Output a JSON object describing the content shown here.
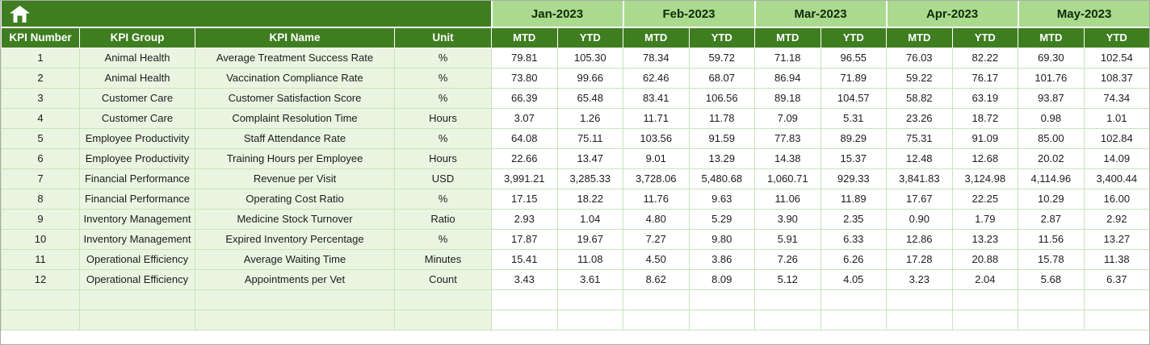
{
  "sheet": {
    "home_icon": "home-icon",
    "months": [
      "Jan-2023",
      "Feb-2023",
      "Mar-2023",
      "Apr-2023",
      "May-2023"
    ],
    "period_headers": [
      "MTD",
      "YTD"
    ],
    "left_headers": [
      "KPI Number",
      "KPI Group",
      "KPI Name",
      "Unit"
    ],
    "rows": [
      {
        "number": "1",
        "group": "Animal Health",
        "name": "Average Treatment Success Rate",
        "unit": "%",
        "values": [
          "79.81",
          "105.30",
          "78.34",
          "59.72",
          "71.18",
          "96.55",
          "76.03",
          "82.22",
          "69.30",
          "102.54"
        ]
      },
      {
        "number": "2",
        "group": "Animal Health",
        "name": "Vaccination Compliance Rate",
        "unit": "%",
        "values": [
          "73.80",
          "99.66",
          "62.46",
          "68.07",
          "86.94",
          "71.89",
          "59.22",
          "76.17",
          "101.76",
          "108.37"
        ]
      },
      {
        "number": "3",
        "group": "Customer Care",
        "name": "Customer Satisfaction Score",
        "unit": "%",
        "values": [
          "66.39",
          "65.48",
          "83.41",
          "106.56",
          "89.18",
          "104.57",
          "58.82",
          "63.19",
          "93.87",
          "74.34"
        ]
      },
      {
        "number": "4",
        "group": "Customer Care",
        "name": "Complaint Resolution Time",
        "unit": "Hours",
        "values": [
          "3.07",
          "1.26",
          "11.71",
          "11.78",
          "7.09",
          "5.31",
          "23.26",
          "18.72",
          "0.98",
          "1.01"
        ]
      },
      {
        "number": "5",
        "group": "Employee Productivity",
        "name": "Staff Attendance Rate",
        "unit": "%",
        "values": [
          "64.08",
          "75.11",
          "103.56",
          "91.59",
          "77.83",
          "89.29",
          "75.31",
          "91.09",
          "85.00",
          "102.84"
        ]
      },
      {
        "number": "6",
        "group": "Employee Productivity",
        "name": "Training Hours per Employee",
        "unit": "Hours",
        "values": [
          "22.66",
          "13.47",
          "9.01",
          "13.29",
          "14.38",
          "15.37",
          "12.48",
          "12.68",
          "20.02",
          "14.09"
        ]
      },
      {
        "number": "7",
        "group": "Financial Performance",
        "name": "Revenue per Visit",
        "unit": "USD",
        "values": [
          "3,991.21",
          "3,285.33",
          "3,728.06",
          "5,480.68",
          "1,060.71",
          "929.33",
          "3,841.83",
          "3,124.98",
          "4,114.96",
          "3,400.44"
        ]
      },
      {
        "number": "8",
        "group": "Financial Performance",
        "name": "Operating Cost Ratio",
        "unit": "%",
        "values": [
          "17.15",
          "18.22",
          "11.76",
          "9.63",
          "11.06",
          "11.89",
          "17.67",
          "22.25",
          "10.29",
          "16.00"
        ]
      },
      {
        "number": "9",
        "group": "Inventory Management",
        "name": "Medicine Stock Turnover",
        "unit": "Ratio",
        "values": [
          "2.93",
          "1.04",
          "4.80",
          "5.29",
          "3.90",
          "2.35",
          "0.90",
          "1.79",
          "2.87",
          "2.92"
        ]
      },
      {
        "number": "10",
        "group": "Inventory Management",
        "name": "Expired Inventory Percentage",
        "unit": "%",
        "values": [
          "17.87",
          "19.67",
          "7.27",
          "9.80",
          "5.91",
          "6.33",
          "12.86",
          "13.23",
          "11.56",
          "13.27"
        ]
      },
      {
        "number": "11",
        "group": "Operational Efficiency",
        "name": "Average Waiting Time",
        "unit": "Minutes",
        "values": [
          "15.41",
          "11.08",
          "4.50",
          "3.86",
          "7.26",
          "6.26",
          "17.28",
          "20.88",
          "15.78",
          "11.38"
        ]
      },
      {
        "number": "12",
        "group": "Operational Efficiency",
        "name": "Appointments per Vet",
        "unit": "Count",
        "values": [
          "3.43",
          "3.61",
          "8.62",
          "8.09",
          "5.12",
          "4.05",
          "3.23",
          "2.04",
          "5.68",
          "6.37"
        ]
      }
    ],
    "empty_row_count": 2
  },
  "colors": {
    "header_dark_green": "#3E7E20",
    "header_light_green": "#A9DA8E",
    "row_tint_green": "#EAF5E1",
    "grid_border": "#C9E3BA",
    "value_cell_bg": "#FFFFFF"
  }
}
